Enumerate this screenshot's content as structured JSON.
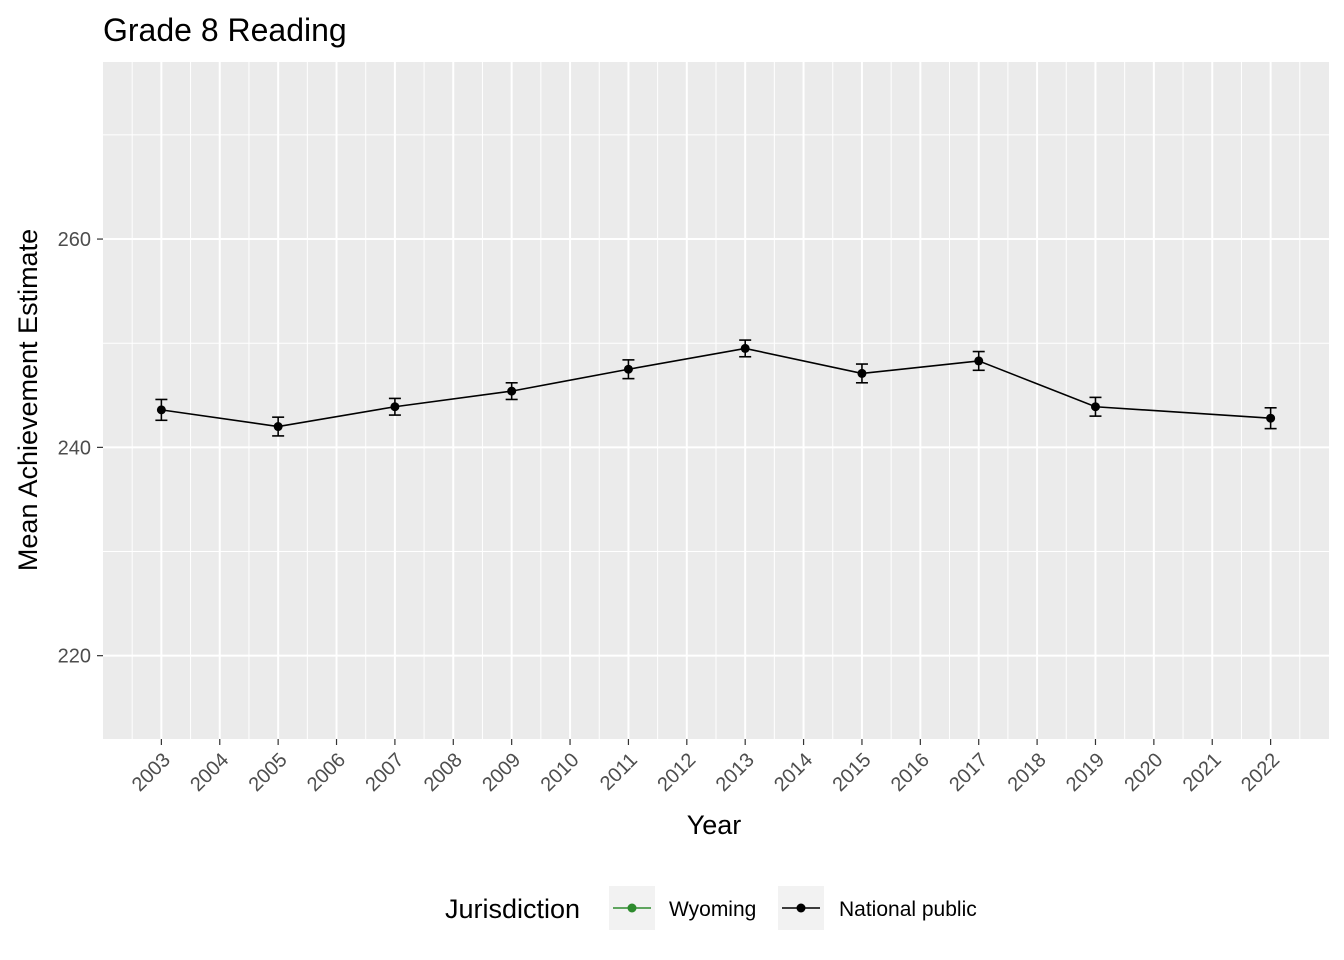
{
  "chart_data": {
    "type": "line",
    "title": "Grade 8 Reading",
    "xlabel": "Year",
    "ylabel": "Mean Achievement Estimate",
    "x_ticks": [
      "2003",
      "2004",
      "2005",
      "2006",
      "2007",
      "2008",
      "2009",
      "2010",
      "2011",
      "2012",
      "2013",
      "2014",
      "2015",
      "2016",
      "2017",
      "2018",
      "2019",
      "2020",
      "2021",
      "2022"
    ],
    "y_ticks": [
      220,
      240,
      260
    ],
    "xlim": [
      2002,
      2023
    ],
    "ylim": [
      212,
      277
    ],
    "grid": true,
    "legend": {
      "title": "Jurisdiction",
      "position": "bottom",
      "entries": [
        {
          "label": "Wyoming",
          "color": "#2e8b2e"
        },
        {
          "label": "National public",
          "color": "#000000"
        }
      ]
    },
    "series": [
      {
        "name": "National public",
        "color": "#000000",
        "points": [
          {
            "x": 2003,
            "y": 243.6,
            "lo": 242.6,
            "hi": 244.6
          },
          {
            "x": 2005,
            "y": 242.0,
            "lo": 241.1,
            "hi": 242.9
          },
          {
            "x": 2007,
            "y": 243.9,
            "lo": 243.1,
            "hi": 244.7
          },
          {
            "x": 2009,
            "y": 245.4,
            "lo": 244.6,
            "hi": 246.2
          },
          {
            "x": 2011,
            "y": 247.5,
            "lo": 246.6,
            "hi": 248.4
          },
          {
            "x": 2013,
            "y": 249.5,
            "lo": 248.7,
            "hi": 250.3
          },
          {
            "x": 2015,
            "y": 247.1,
            "lo": 246.2,
            "hi": 248.0
          },
          {
            "x": 2017,
            "y": 248.3,
            "lo": 247.4,
            "hi": 249.2
          },
          {
            "x": 2019,
            "y": 243.9,
            "lo": 243.0,
            "hi": 244.8
          },
          {
            "x": 2022,
            "y": 242.8,
            "lo": 241.8,
            "hi": 243.8
          }
        ]
      },
      {
        "name": "Wyoming",
        "color": "#2e8b2e",
        "points": []
      }
    ]
  }
}
